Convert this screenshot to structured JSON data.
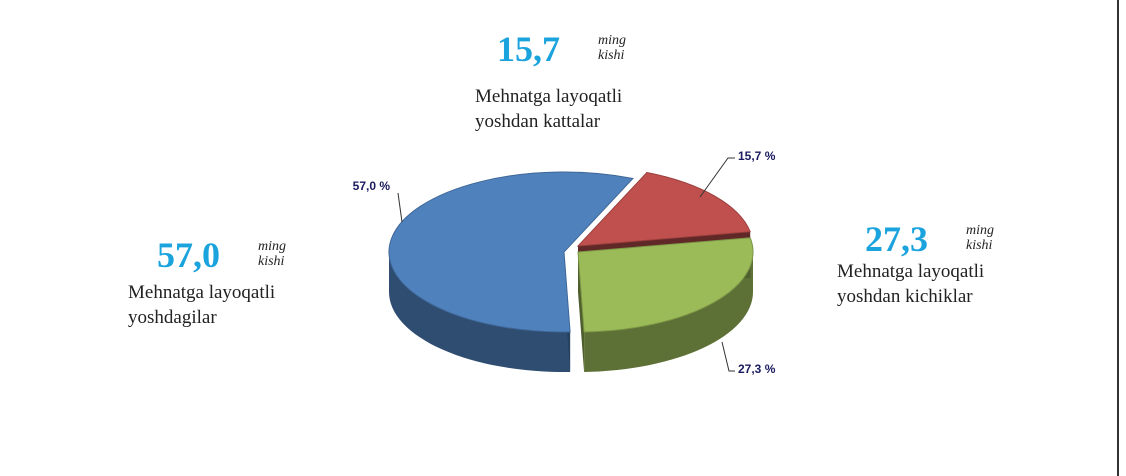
{
  "chart_data": {
    "type": "pie",
    "categories": [
      "Mehnatga layoqatli yoshdagilar",
      "Mehnatga layoqatli yoshdan kattalar",
      "Mehnatga layoqatli yoshdan kichiklar"
    ],
    "values": [
      57.0,
      15.7,
      27.3
    ],
    "value_labels": [
      "57,0 %",
      "15,7 %",
      "27,3 %"
    ],
    "colors": [
      "#4f81bd",
      "#c0504d",
      "#9bbb59"
    ],
    "callouts": [
      {
        "value": 57.0,
        "label": "57,0",
        "unit": "ming kishi"
      },
      {
        "value": 15.7,
        "label": "15,7",
        "unit": "ming kishi"
      },
      {
        "value": 27.3,
        "label": "27,3",
        "unit": "ming kishi"
      }
    ]
  }
}
